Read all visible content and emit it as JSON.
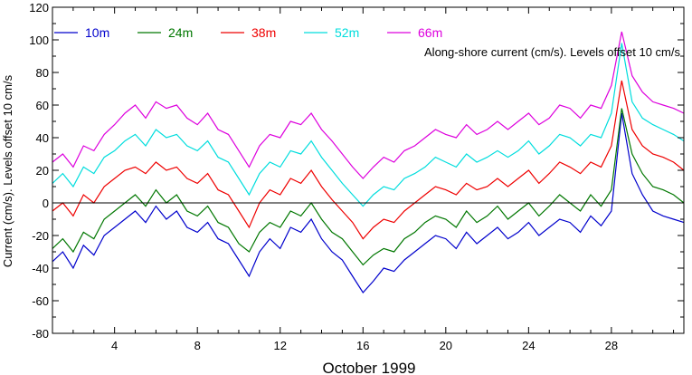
{
  "chart_data": {
    "type": "line",
    "title": "",
    "annotation": "Along-shore current (cm/s). Levels offset 10 cm/s",
    "xlabel": "October 1999",
    "ylabel": "Current (cm/s). Levels offset 10 cm/s",
    "xlim": [
      1,
      31.5
    ],
    "ylim": [
      -80,
      120
    ],
    "xticks": [
      4,
      8,
      12,
      16,
      20,
      24,
      28
    ],
    "yticks": [
      -80,
      -60,
      -40,
      -20,
      0,
      20,
      40,
      60,
      80,
      100,
      120
    ],
    "zero_line": 0,
    "grid": false,
    "legend_position": "top",
    "x": [
      1.0,
      1.5,
      2.0,
      2.5,
      3.0,
      3.5,
      4.0,
      4.5,
      5.0,
      5.5,
      6.0,
      6.5,
      7.0,
      7.5,
      8.0,
      8.5,
      9.0,
      9.5,
      10.0,
      10.5,
      11.0,
      11.5,
      12.0,
      12.5,
      13.0,
      13.5,
      14.0,
      14.5,
      15.0,
      15.5,
      16.0,
      16.5,
      17.0,
      17.5,
      18.0,
      18.5,
      19.0,
      19.5,
      20.0,
      20.5,
      21.0,
      21.5,
      22.0,
      22.5,
      23.0,
      23.5,
      24.0,
      24.5,
      25.0,
      25.5,
      26.0,
      26.5,
      27.0,
      27.5,
      28.0,
      28.5,
      29.0,
      29.5,
      30.0,
      30.5,
      31.0,
      31.5
    ],
    "series": [
      {
        "name": "10m",
        "color": "#0000cc",
        "values": [
          -36,
          -30,
          -40,
          -26,
          -32,
          -20,
          -15,
          -10,
          -5,
          -12,
          -2,
          -10,
          -5,
          -15,
          -18,
          -12,
          -22,
          -25,
          -35,
          -45,
          -30,
          -22,
          -28,
          -15,
          -18,
          -10,
          -22,
          -30,
          -35,
          -45,
          -55,
          -48,
          -40,
          -42,
          -35,
          -30,
          -25,
          -20,
          -22,
          -28,
          -18,
          -25,
          -20,
          -15,
          -22,
          -18,
          -12,
          -20,
          -15,
          -10,
          -12,
          -18,
          -8,
          -14,
          -5,
          55,
          18,
          5,
          -5,
          -8,
          -10,
          -12
        ]
      },
      {
        "name": "24m",
        "color": "#007700",
        "values": [
          -28,
          -22,
          -30,
          -18,
          -22,
          -10,
          -5,
          0,
          5,
          -2,
          8,
          0,
          5,
          -5,
          -8,
          -2,
          -12,
          -15,
          -25,
          -30,
          -18,
          -12,
          -15,
          -5,
          -8,
          0,
          -10,
          -18,
          -22,
          -30,
          -38,
          -32,
          -28,
          -30,
          -22,
          -18,
          -12,
          -8,
          -10,
          -15,
          -5,
          -12,
          -8,
          -2,
          -10,
          -5,
          0,
          -8,
          -2,
          5,
          0,
          -5,
          5,
          -2,
          8,
          58,
          30,
          18,
          10,
          8,
          5,
          0
        ]
      },
      {
        "name": "38m",
        "color": "#ee0000",
        "values": [
          -5,
          0,
          -8,
          5,
          0,
          10,
          15,
          20,
          22,
          18,
          25,
          20,
          22,
          15,
          12,
          18,
          8,
          5,
          -5,
          -15,
          0,
          8,
          5,
          15,
          12,
          20,
          10,
          2,
          -5,
          -12,
          -22,
          -15,
          -10,
          -12,
          -5,
          0,
          5,
          10,
          8,
          5,
          12,
          8,
          10,
          15,
          10,
          15,
          20,
          12,
          18,
          25,
          22,
          18,
          25,
          22,
          35,
          75,
          45,
          35,
          30,
          28,
          25,
          20
        ]
      },
      {
        "name": "52m",
        "color": "#00dddd",
        "values": [
          12,
          18,
          10,
          22,
          18,
          28,
          32,
          38,
          42,
          35,
          45,
          40,
          42,
          35,
          32,
          38,
          28,
          25,
          15,
          5,
          18,
          25,
          22,
          32,
          30,
          38,
          28,
          20,
          12,
          5,
          -2,
          5,
          10,
          8,
          15,
          18,
          22,
          28,
          25,
          22,
          30,
          25,
          28,
          32,
          28,
          32,
          38,
          30,
          35,
          42,
          40,
          35,
          42,
          40,
          55,
          98,
          62,
          52,
          48,
          45,
          42,
          38
        ]
      },
      {
        "name": "66m",
        "color": "#dd00dd",
        "values": [
          25,
          30,
          22,
          35,
          32,
          42,
          48,
          55,
          60,
          52,
          62,
          58,
          60,
          52,
          48,
          55,
          45,
          42,
          32,
          22,
          35,
          42,
          40,
          50,
          48,
          55,
          45,
          38,
          30,
          22,
          15,
          22,
          28,
          25,
          32,
          35,
          40,
          45,
          42,
          40,
          48,
          42,
          45,
          50,
          45,
          50,
          55,
          48,
          52,
          60,
          58,
          52,
          60,
          58,
          72,
          105,
          78,
          68,
          62,
          60,
          58,
          55
        ]
      }
    ]
  }
}
